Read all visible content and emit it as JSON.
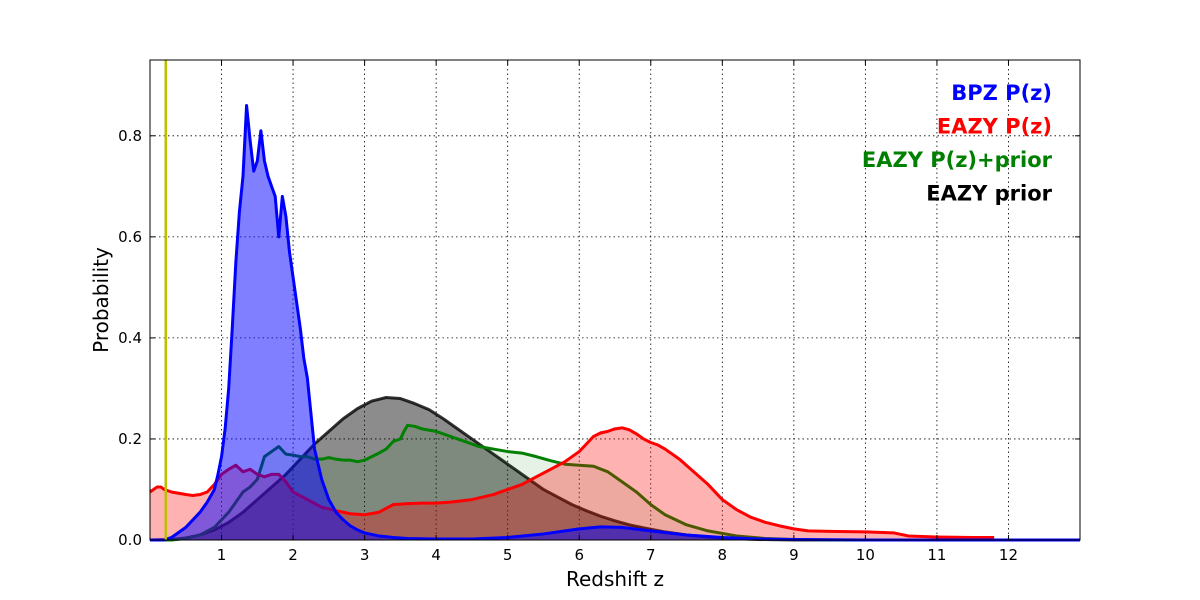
{
  "chart_data": {
    "type": "area",
    "xlabel": "Redshift z",
    "ylabel": "Probability",
    "xlim": [
      0,
      13
    ],
    "ylim": [
      0,
      0.95
    ],
    "grid": true,
    "legend_position": "top-right",
    "xticks": [
      1,
      2,
      3,
      4,
      5,
      6,
      7,
      8,
      9,
      10,
      11,
      12
    ],
    "xtick_labels": [
      "1",
      "2",
      "3",
      "4",
      "5",
      "6",
      "7",
      "8",
      "9",
      "10",
      "11",
      "12"
    ],
    "yticks": [
      0.0,
      0.2,
      0.4,
      0.6,
      0.8
    ],
    "ytick_labels": [
      "0.0",
      "0.2",
      "0.4",
      "0.6",
      "0.8"
    ],
    "vline": {
      "x": 0.22,
      "color": "#bfbf00"
    },
    "series": [
      {
        "name": "EAZY prior",
        "legend_label": "EAZY prior",
        "color": "#000000",
        "fill": true,
        "x": [
          0,
          0.3,
          0.5,
          0.7,
          0.9,
          1.1,
          1.3,
          1.5,
          1.7,
          1.9,
          2.1,
          2.3,
          2.5,
          2.7,
          2.9,
          3.1,
          3.3,
          3.5,
          3.7,
          3.9,
          4.1,
          4.3,
          4.5,
          4.7,
          4.9,
          5.1,
          5.3,
          5.5,
          5.7,
          5.9,
          6.1,
          6.3,
          6.5,
          6.7,
          6.9,
          7.2,
          7.5,
          7.8,
          8.1,
          8.5,
          9.0,
          9.5,
          10.0
        ],
        "y": [
          0.0,
          0.001,
          0.004,
          0.01,
          0.02,
          0.035,
          0.055,
          0.08,
          0.105,
          0.13,
          0.16,
          0.19,
          0.215,
          0.24,
          0.26,
          0.275,
          0.282,
          0.28,
          0.27,
          0.258,
          0.24,
          0.22,
          0.2,
          0.18,
          0.16,
          0.14,
          0.12,
          0.1,
          0.085,
          0.07,
          0.058,
          0.047,
          0.038,
          0.03,
          0.024,
          0.016,
          0.01,
          0.006,
          0.003,
          0.001,
          0.0,
          0.0,
          0.0
        ]
      },
      {
        "name": "EAZY P(z)+prior",
        "legend_label": "EAZY P(z)+prior",
        "color": "#008000",
        "fill": true,
        "x": [
          0,
          0.3,
          0.5,
          0.7,
          0.9,
          1.0,
          1.1,
          1.2,
          1.3,
          1.4,
          1.5,
          1.6,
          1.7,
          1.8,
          1.9,
          2.0,
          2.1,
          2.2,
          2.3,
          2.4,
          2.5,
          2.6,
          2.7,
          2.8,
          2.9,
          3.0,
          3.1,
          3.2,
          3.3,
          3.4,
          3.5,
          3.55,
          3.6,
          3.7,
          3.8,
          4.0,
          4.2,
          4.4,
          4.6,
          4.8,
          5.0,
          5.2,
          5.4,
          5.6,
          5.8,
          6.0,
          6.2,
          6.4,
          6.6,
          6.8,
          7.0,
          7.2,
          7.5,
          7.8,
          8.2,
          8.6,
          9.0,
          9.5,
          10.0
        ],
        "y": [
          0.0,
          0.0,
          0.003,
          0.01,
          0.025,
          0.04,
          0.055,
          0.075,
          0.095,
          0.105,
          0.12,
          0.165,
          0.175,
          0.185,
          0.17,
          0.168,
          0.165,
          0.165,
          0.16,
          0.16,
          0.163,
          0.16,
          0.158,
          0.158,
          0.155,
          0.158,
          0.165,
          0.172,
          0.18,
          0.195,
          0.2,
          0.215,
          0.227,
          0.225,
          0.22,
          0.215,
          0.205,
          0.195,
          0.185,
          0.18,
          0.175,
          0.172,
          0.165,
          0.157,
          0.15,
          0.148,
          0.146,
          0.135,
          0.115,
          0.095,
          0.07,
          0.05,
          0.03,
          0.018,
          0.008,
          0.003,
          0.001,
          0.0,
          0.0
        ]
      },
      {
        "name": "EAZY P(z)",
        "legend_label": "EAZY P(z)",
        "color": "#ff0000",
        "fill": true,
        "x": [
          0,
          0.1,
          0.15,
          0.2,
          0.3,
          0.5,
          0.6,
          0.7,
          0.8,
          0.9,
          1.0,
          1.1,
          1.2,
          1.3,
          1.4,
          1.5,
          1.6,
          1.7,
          1.8,
          1.9,
          2.0,
          2.2,
          2.4,
          2.6,
          2.8,
          3.0,
          3.2,
          3.4,
          3.6,
          3.8,
          4.0,
          4.2,
          4.5,
          4.8,
          5.0,
          5.2,
          5.4,
          5.6,
          5.8,
          6.0,
          6.1,
          6.2,
          6.3,
          6.4,
          6.5,
          6.6,
          6.7,
          6.8,
          6.9,
          7.0,
          7.1,
          7.2,
          7.4,
          7.6,
          7.8,
          8.0,
          8.2,
          8.4,
          8.6,
          8.8,
          9.0,
          9.2,
          9.5,
          10.0,
          10.4,
          10.6,
          11.0,
          11.5,
          11.8
        ],
        "y": [
          0.095,
          0.105,
          0.105,
          0.1,
          0.095,
          0.09,
          0.088,
          0.09,
          0.095,
          0.11,
          0.13,
          0.14,
          0.148,
          0.135,
          0.14,
          0.13,
          0.125,
          0.13,
          0.13,
          0.115,
          0.095,
          0.08,
          0.065,
          0.058,
          0.052,
          0.05,
          0.055,
          0.07,
          0.072,
          0.073,
          0.073,
          0.075,
          0.08,
          0.09,
          0.1,
          0.11,
          0.125,
          0.14,
          0.155,
          0.175,
          0.19,
          0.205,
          0.212,
          0.215,
          0.22,
          0.222,
          0.218,
          0.21,
          0.2,
          0.193,
          0.188,
          0.18,
          0.16,
          0.135,
          0.11,
          0.08,
          0.06,
          0.045,
          0.035,
          0.028,
          0.022,
          0.018,
          0.017,
          0.016,
          0.014,
          0.008,
          0.006,
          0.005,
          0.005
        ]
      },
      {
        "name": "BPZ P(z)",
        "legend_label": "BPZ P(z)",
        "color": "#0000ff",
        "fill": true,
        "x": [
          0,
          0.2,
          0.3,
          0.5,
          0.6,
          0.7,
          0.8,
          0.9,
          0.95,
          1.0,
          1.05,
          1.1,
          1.15,
          1.2,
          1.25,
          1.3,
          1.35,
          1.4,
          1.45,
          1.5,
          1.55,
          1.6,
          1.65,
          1.7,
          1.75,
          1.8,
          1.85,
          1.9,
          1.95,
          2.0,
          2.05,
          2.1,
          2.15,
          2.2,
          2.25,
          2.3,
          2.4,
          2.5,
          2.6,
          2.7,
          2.8,
          2.9,
          3.0,
          3.2,
          3.4,
          3.6,
          4.0,
          4.5,
          5.0,
          5.5,
          6.0,
          6.3,
          6.6,
          7.0,
          7.5,
          8.0,
          8.5,
          9.0,
          10.0,
          11.0,
          12.0,
          13.0
        ],
        "y": [
          0.0,
          0.0,
          0.005,
          0.025,
          0.04,
          0.055,
          0.075,
          0.1,
          0.13,
          0.165,
          0.22,
          0.3,
          0.42,
          0.55,
          0.65,
          0.72,
          0.86,
          0.79,
          0.73,
          0.75,
          0.81,
          0.75,
          0.72,
          0.7,
          0.68,
          0.6,
          0.68,
          0.64,
          0.57,
          0.52,
          0.47,
          0.42,
          0.36,
          0.32,
          0.25,
          0.18,
          0.12,
          0.08,
          0.055,
          0.04,
          0.028,
          0.02,
          0.014,
          0.008,
          0.005,
          0.003,
          0.002,
          0.002,
          0.005,
          0.012,
          0.022,
          0.026,
          0.025,
          0.018,
          0.01,
          0.005,
          0.002,
          0.001,
          0.0,
          0.0,
          0.0,
          0.0
        ]
      }
    ]
  }
}
